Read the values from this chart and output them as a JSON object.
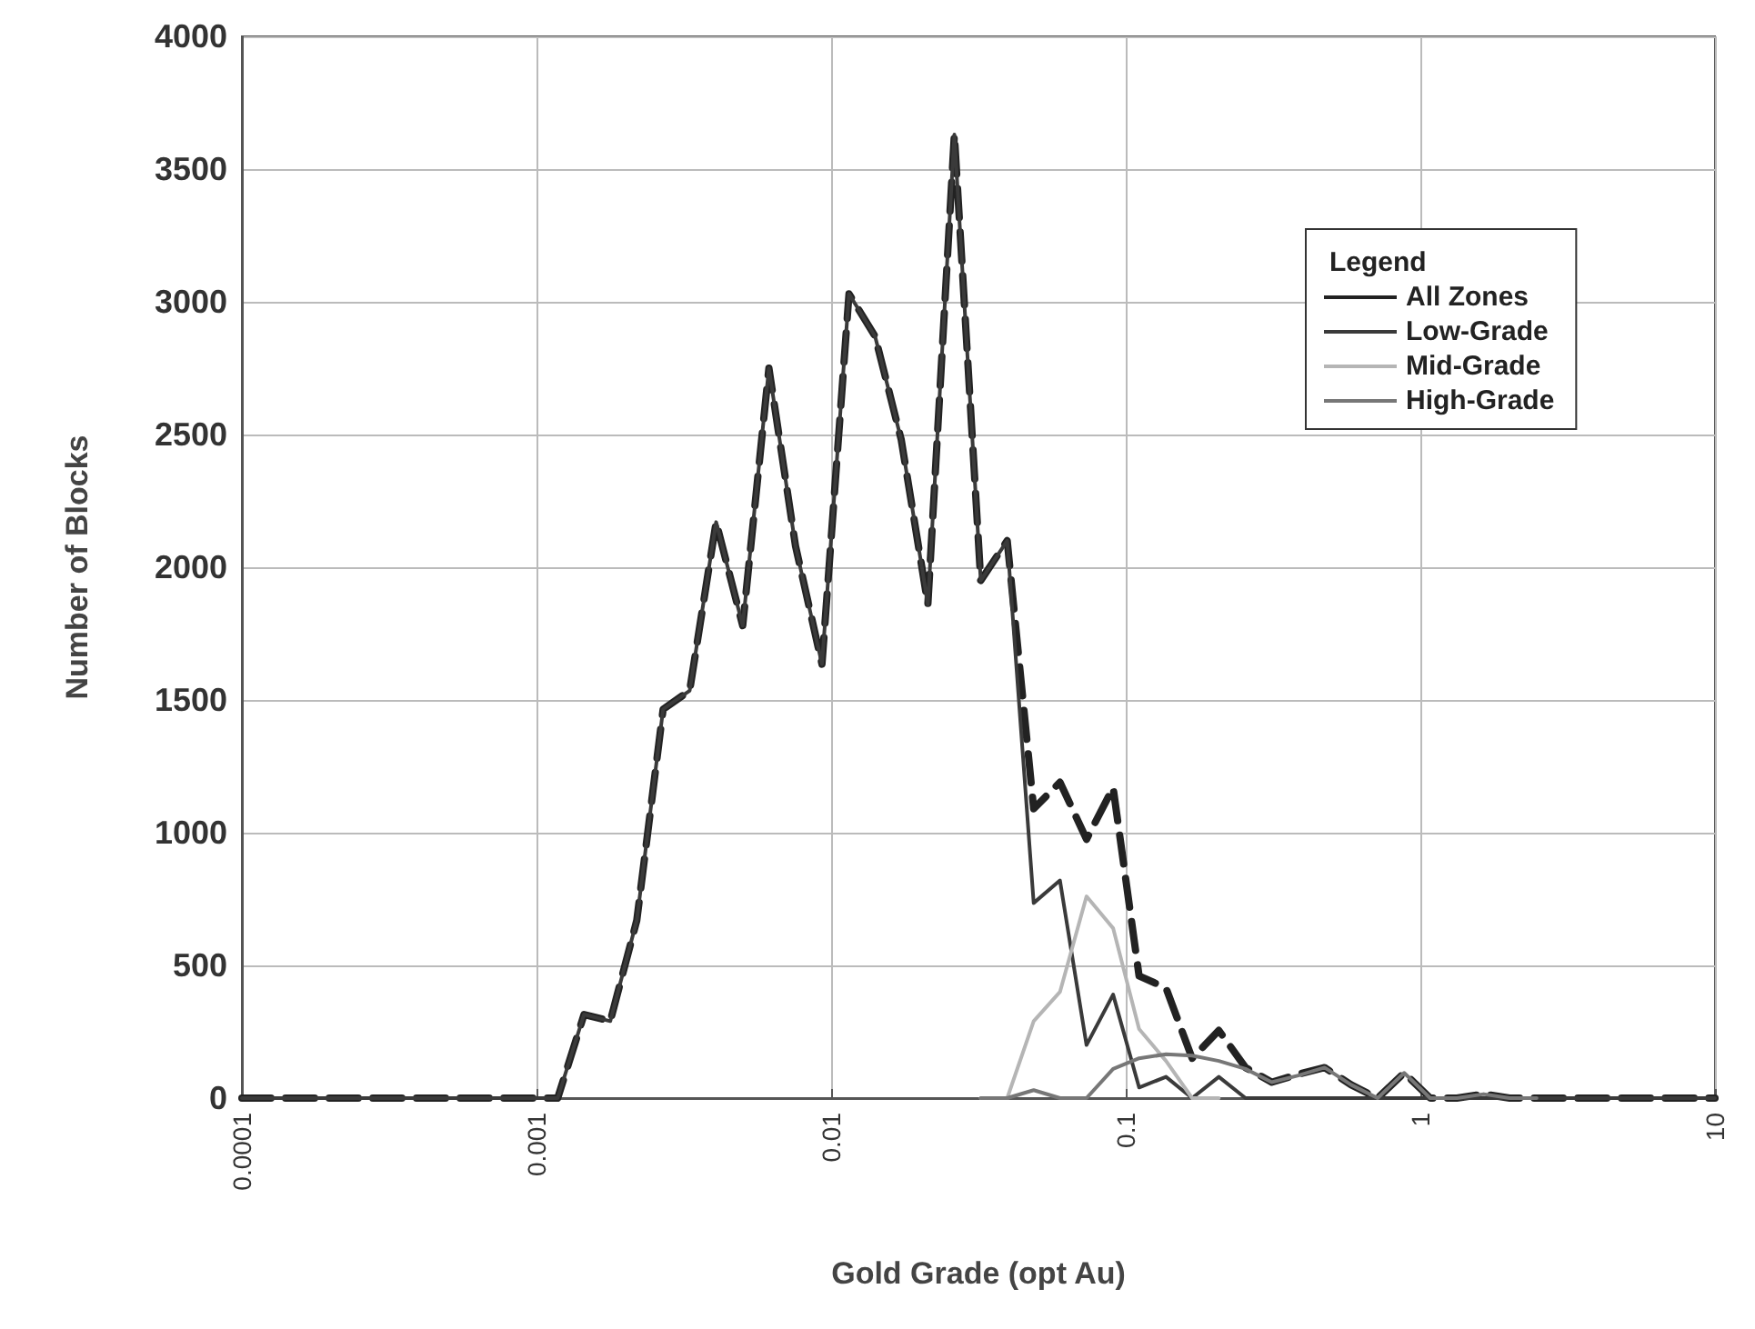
{
  "chart_data": {
    "type": "line",
    "xlabel": "Gold Grade (opt Au)",
    "ylabel": "Number of Blocks",
    "legend_title": "Legend",
    "log": "x",
    "x": [
      0.0001,
      0.00118,
      0.00145,
      0.00178,
      0.00219,
      0.00269,
      0.00331,
      0.00407,
      0.00501,
      0.00615,
      0.00757,
      0.00931,
      0.0115,
      0.0141,
      0.0173,
      0.0213,
      0.0262,
      0.0322,
      0.0396,
      0.0487,
      0.0598,
      0.0736,
      0.0906,
      0.111,
      0.137,
      0.168,
      0.207,
      0.255,
      0.313,
      0.385,
      0.473,
      0.582,
      0.716,
      0.881,
      1.08,
      1.33,
      1.64,
      2.01,
      2.48,
      10
    ],
    "series": [
      {
        "name": "All Zones",
        "color": "#222222",
        "line_style": "dashed",
        "values": [
          0,
          0,
          315,
          290,
          670,
          1465,
          1535,
          2170,
          1780,
          2750,
          2080,
          1635,
          3030,
          2870,
          2480,
          1860,
          3630,
          1950,
          2100,
          1090,
          1190,
          975,
          1170,
          460,
          415,
          150,
          255,
          115,
          60,
          90,
          115,
          50,
          0,
          95,
          0,
          0,
          15,
          0,
          0,
          0
        ]
      },
      {
        "name": "Low-Grade",
        "color": "#3a3a3a",
        "line_style": "solid",
        "values": [
          0,
          0,
          315,
          290,
          670,
          1465,
          1535,
          2170,
          1780,
          2750,
          2080,
          1635,
          3030,
          2870,
          2480,
          1860,
          3630,
          1950,
          2100,
          735,
          820,
          200,
          390,
          40,
          80,
          0,
          80,
          0,
          0,
          0,
          0,
          0,
          0,
          0,
          0,
          0,
          0,
          0,
          0,
          0
        ]
      },
      {
        "name": "Mid-Grade",
        "color": "#b5b5b5",
        "line_style": "solid",
        "x": [
          0.0322,
          0.0396,
          0.0487,
          0.0598,
          0.0736,
          0.0906,
          0.111,
          0.137,
          0.168,
          0.207
        ],
        "values": [
          0,
          0,
          290,
          400,
          760,
          640,
          260,
          140,
          0,
          0
        ]
      },
      {
        "name": "High-Grade",
        "color": "#777777",
        "line_style": "solid",
        "x": [
          0.0322,
          0.0396,
          0.0487,
          0.0598,
          0.0736,
          0.0906,
          0.111,
          0.137,
          0.168,
          0.207,
          0.255,
          0.313,
          0.385,
          0.473,
          0.582,
          0.716,
          0.881,
          1.08,
          1.33,
          1.64,
          2.01,
          2.48
        ],
        "values": [
          0,
          0,
          30,
          0,
          0,
          110,
          150,
          165,
          160,
          140,
          110,
          60,
          85,
          115,
          50,
          0,
          95,
          0,
          0,
          15,
          0,
          0
        ]
      }
    ],
    "xlim": [
      0.0001,
      10
    ],
    "xticks": [
      0.0001,
      0.001,
      0.01,
      0.1,
      1,
      10
    ],
    "ylim": [
      0,
      4000
    ],
    "yticks": [
      0,
      500,
      1000,
      1500,
      2000,
      2500,
      3000,
      3500,
      4000
    ],
    "grid": true,
    "legend": "top right",
    "marker": "none"
  }
}
